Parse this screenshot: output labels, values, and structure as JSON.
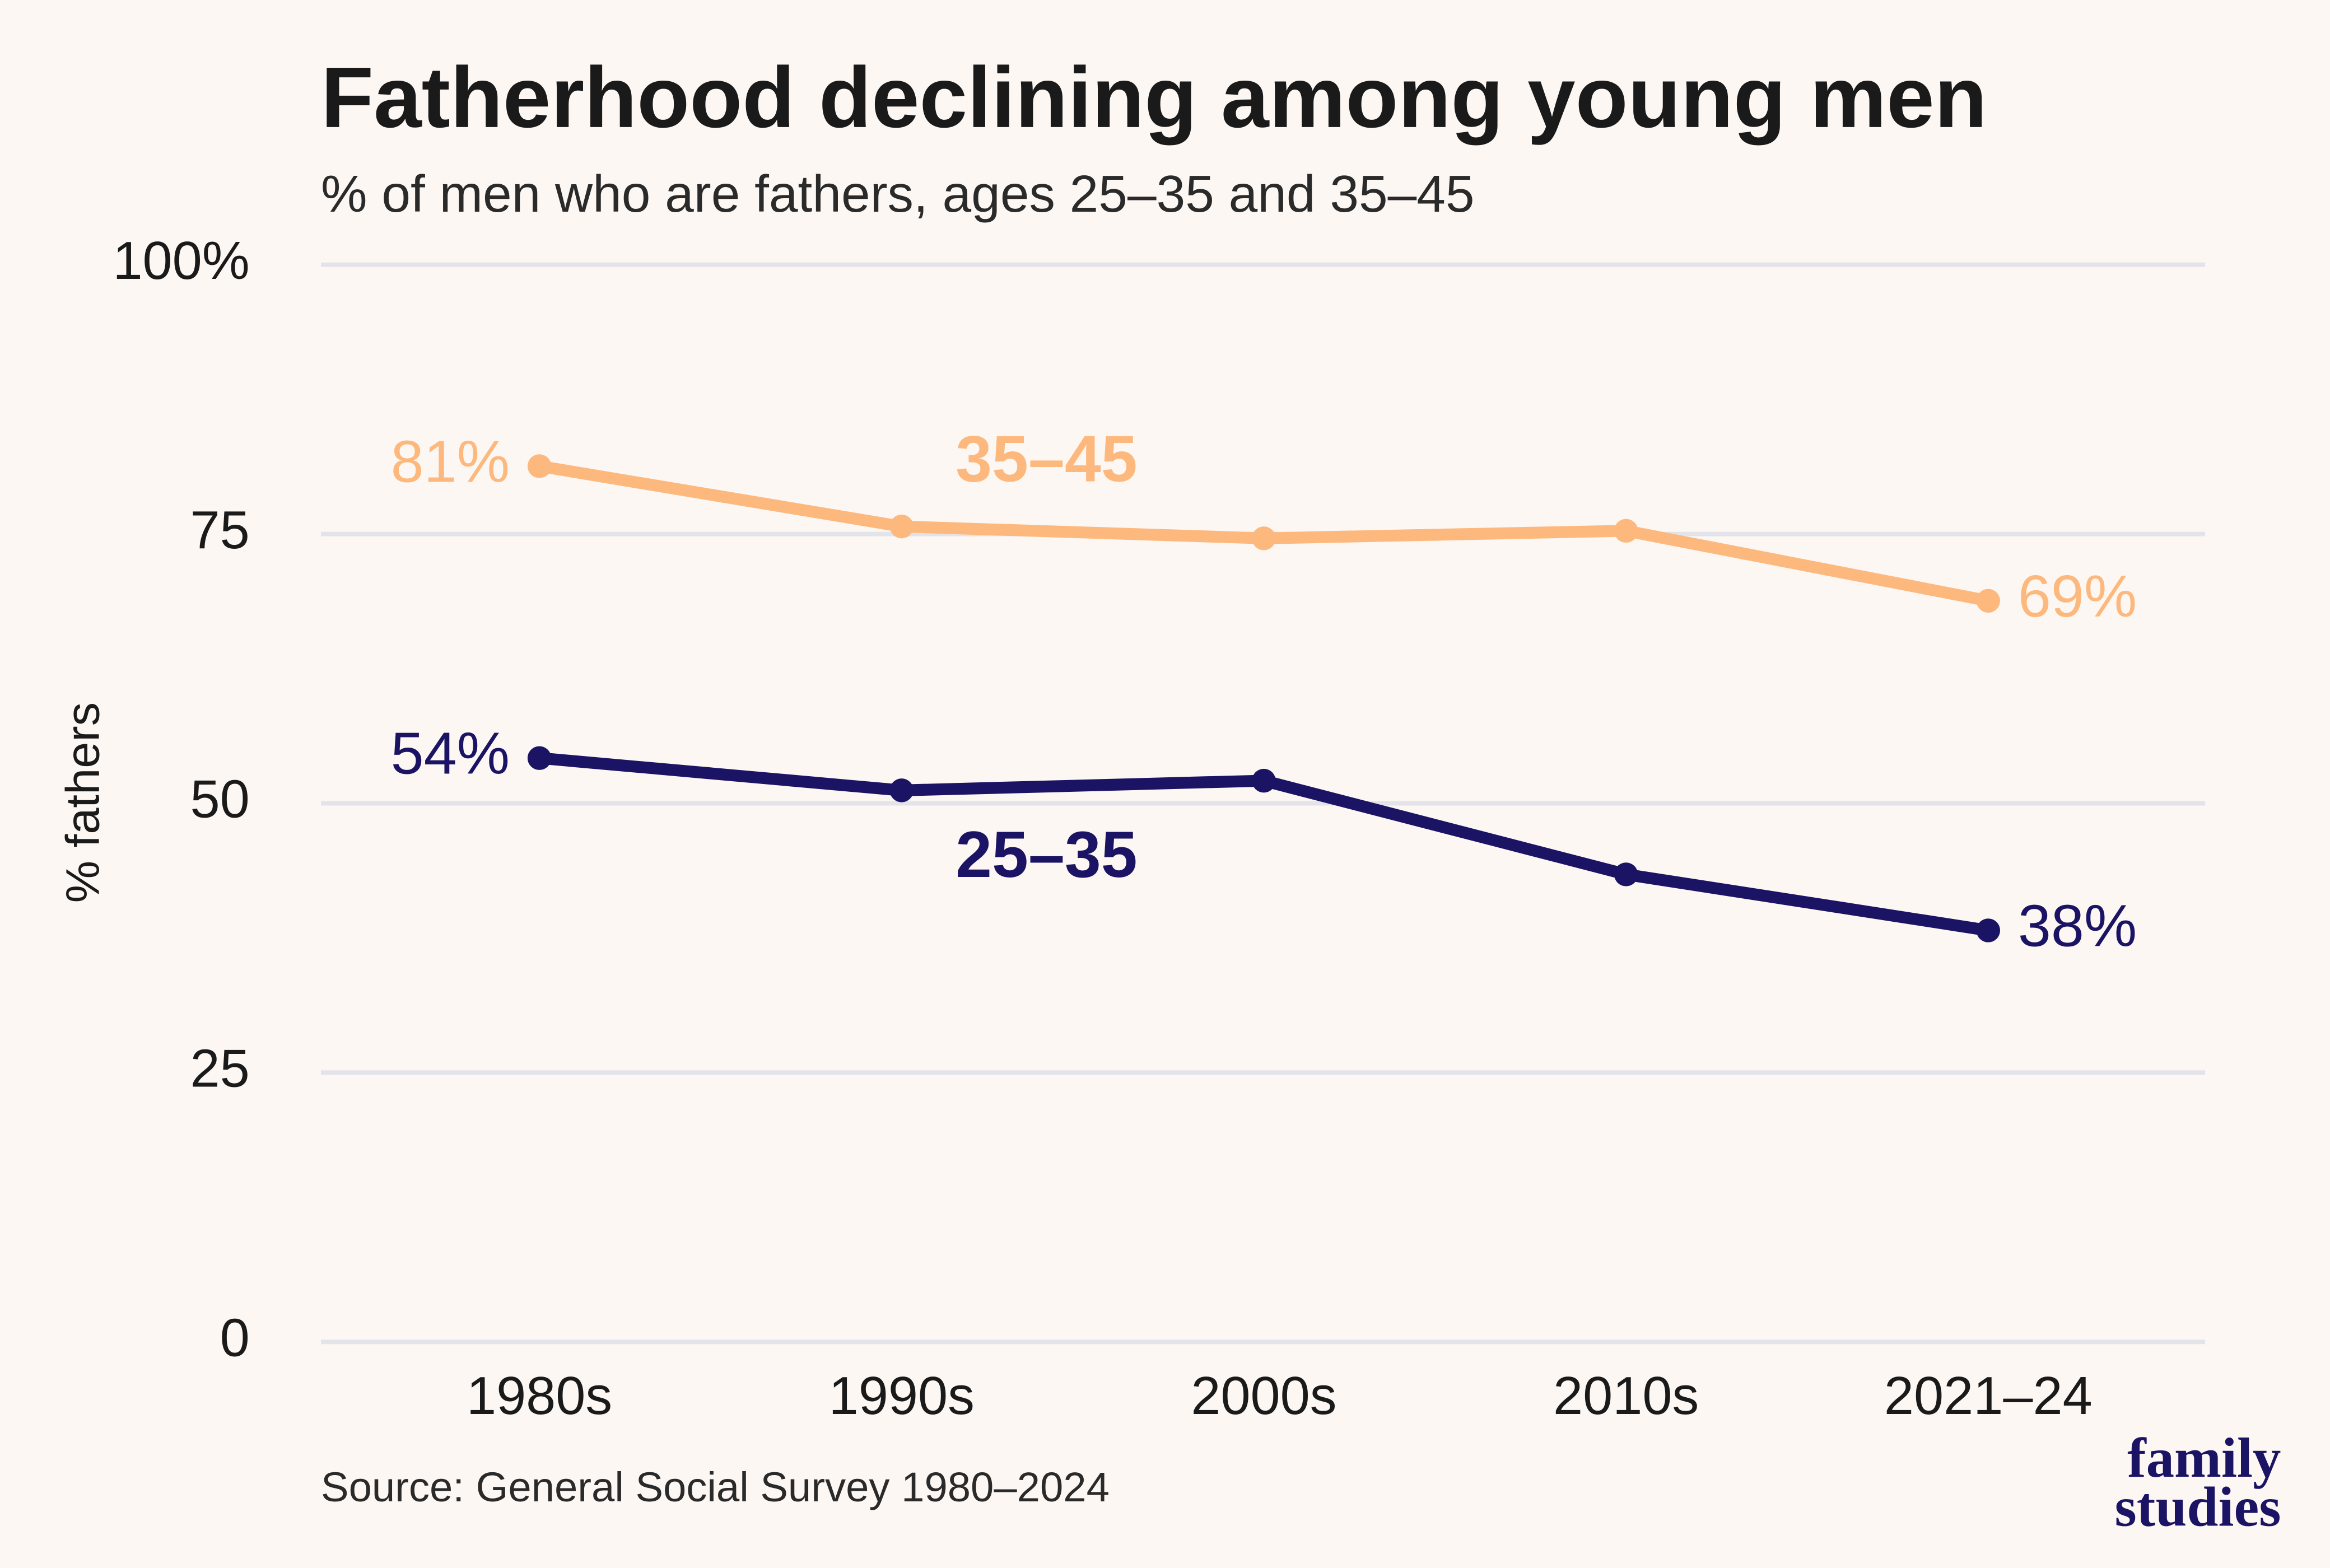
{
  "chart_data": {
    "type": "line",
    "title": "Fatherhood declining among young men",
    "subtitle": "% of men who are fathers, ages 25–35 and 35–45",
    "y_label": "% fathers",
    "source": "Source: General Social Survey 1980–2024",
    "logo": [
      "family",
      "studies"
    ],
    "categories": [
      "1980s",
      "1990s",
      "2000s",
      "2010s",
      "2021–24"
    ],
    "series": [
      {
        "name": "35–45",
        "color": "#fdb97d",
        "values": [
          81.3,
          75.7,
          74.6,
          75.3,
          68.8
        ],
        "value_labels": [
          "81%",
          null,
          null,
          null,
          "69%"
        ]
      },
      {
        "name": "25–35",
        "color": "#1b1464",
        "values": [
          54.2,
          51.2,
          52.1,
          43.4,
          38.2
        ],
        "value_labels": [
          "54%",
          null,
          null,
          null,
          "38%"
        ]
      }
    ],
    "ylim": [
      0,
      100
    ],
    "yticks": [
      0,
      25,
      50,
      75,
      {
        "value": 100,
        "label": "100%"
      }
    ],
    "grid": true
  }
}
